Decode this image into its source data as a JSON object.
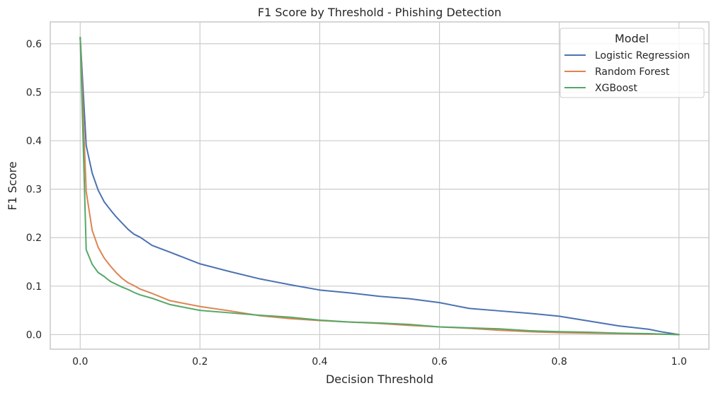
{
  "chart_data": {
    "type": "line",
    "title": "F1 Score by Threshold - Phishing Detection",
    "xlabel": "Decision Threshold",
    "ylabel": "F1 Score",
    "xlim": [
      -0.05,
      1.05
    ],
    "ylim": [
      -0.03,
      0.645
    ],
    "xticks": [
      0.0,
      0.2,
      0.4,
      0.6,
      0.8,
      1.0
    ],
    "xtick_labels": [
      "0.0",
      "0.2",
      "0.4",
      "0.6",
      "0.8",
      "1.0"
    ],
    "yticks": [
      0.0,
      0.1,
      0.2,
      0.3,
      0.4,
      0.5,
      0.6
    ],
    "ytick_labels": [
      "0.0",
      "0.1",
      "0.2",
      "0.3",
      "0.4",
      "0.5",
      "0.6"
    ],
    "grid": true,
    "legend": {
      "title": "Model",
      "position": "top-right"
    },
    "x": [
      0.0,
      0.01,
      0.02,
      0.03,
      0.04,
      0.05,
      0.06,
      0.07,
      0.08,
      0.09,
      0.1,
      0.12,
      0.15,
      0.2,
      0.25,
      0.3,
      0.35,
      0.4,
      0.45,
      0.5,
      0.55,
      0.6,
      0.65,
      0.7,
      0.75,
      0.8,
      0.85,
      0.9,
      0.95,
      0.97,
      1.0
    ],
    "series": [
      {
        "name": "Logistic Regression",
        "color": "#4c72b0",
        "values": [
          0.613,
          0.39,
          0.333,
          0.298,
          0.274,
          0.258,
          0.243,
          0.23,
          0.217,
          0.207,
          0.201,
          0.184,
          0.17,
          0.146,
          0.13,
          0.115,
          0.103,
          0.092,
          0.086,
          0.079,
          0.074,
          0.066,
          0.054,
          0.049,
          0.044,
          0.038,
          0.028,
          0.018,
          0.011,
          0.006,
          0.0
        ]
      },
      {
        "name": "Random Forest",
        "color": "#dd8452",
        "values": [
          0.613,
          0.295,
          0.215,
          0.18,
          0.158,
          0.142,
          0.128,
          0.116,
          0.107,
          0.101,
          0.094,
          0.085,
          0.07,
          0.058,
          0.049,
          0.039,
          0.033,
          0.029,
          0.026,
          0.023,
          0.019,
          0.016,
          0.013,
          0.009,
          0.006,
          0.004,
          0.003,
          0.002,
          0.001,
          0.001,
          0.0
        ]
      },
      {
        "name": "XGBoost",
        "color": "#55a868",
        "values": [
          0.613,
          0.175,
          0.145,
          0.128,
          0.12,
          0.11,
          0.104,
          0.098,
          0.093,
          0.087,
          0.082,
          0.075,
          0.062,
          0.05,
          0.045,
          0.04,
          0.036,
          0.03,
          0.026,
          0.024,
          0.021,
          0.016,
          0.014,
          0.012,
          0.008,
          0.006,
          0.005,
          0.003,
          0.002,
          0.001,
          0.0
        ]
      }
    ]
  }
}
